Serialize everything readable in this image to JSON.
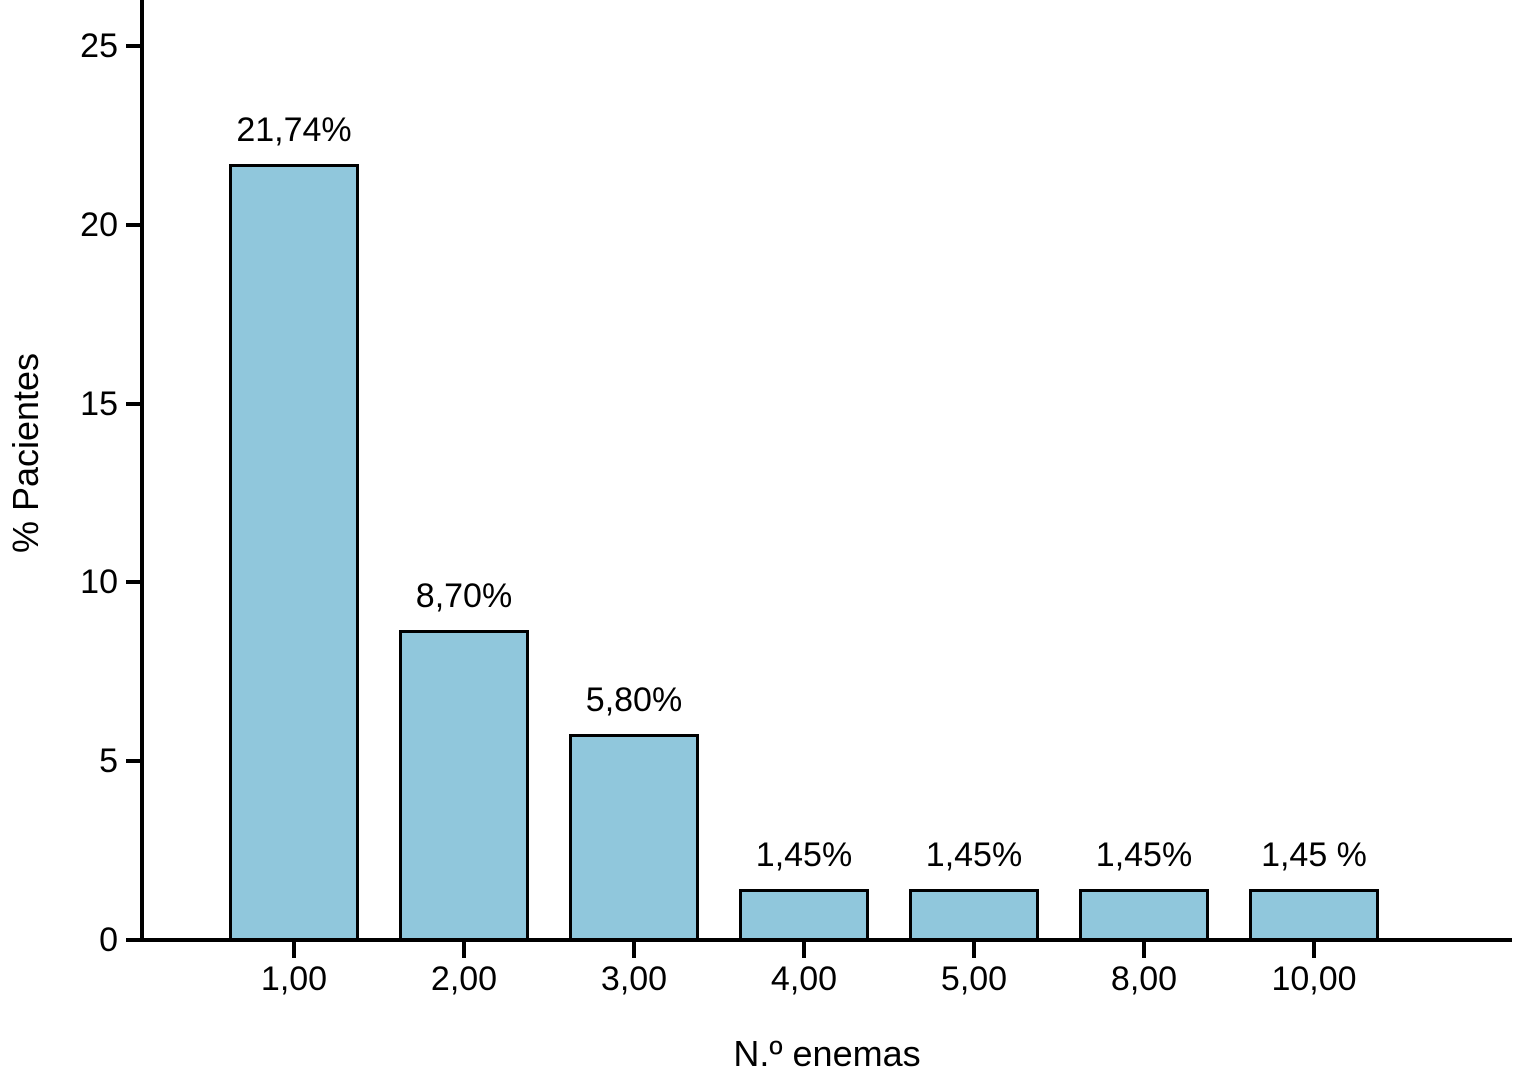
{
  "chart_data": {
    "type": "bar",
    "title": "",
    "xlabel": "N.º enemas",
    "ylabel": "% Pacientes",
    "categories": [
      "1,00",
      "2,00",
      "3,00",
      "4,00",
      "5,00",
      "8,00",
      "10,00"
    ],
    "values": [
      21.74,
      8.7,
      5.8,
      1.45,
      1.45,
      1.45,
      1.45
    ],
    "bar_value_labels": [
      "21,74%",
      "8,70%",
      "5,80%",
      "1,45%",
      "1,45%",
      "1,45%",
      "1,45 %"
    ],
    "ytick_values": [
      0,
      5,
      10,
      15,
      20,
      25
    ],
    "ytick_labels": [
      "0",
      "5",
      "10",
      "15",
      "20",
      "25"
    ],
    "ylim": [
      0,
      26.3
    ],
    "grid": false,
    "legend": "none",
    "series_name": "% Pacientes"
  },
  "colors": {
    "bar_fill": "#90c7dc",
    "bar_border": "#000000",
    "axis": "#000000",
    "text": "#000000",
    "background": "#ffffff"
  }
}
